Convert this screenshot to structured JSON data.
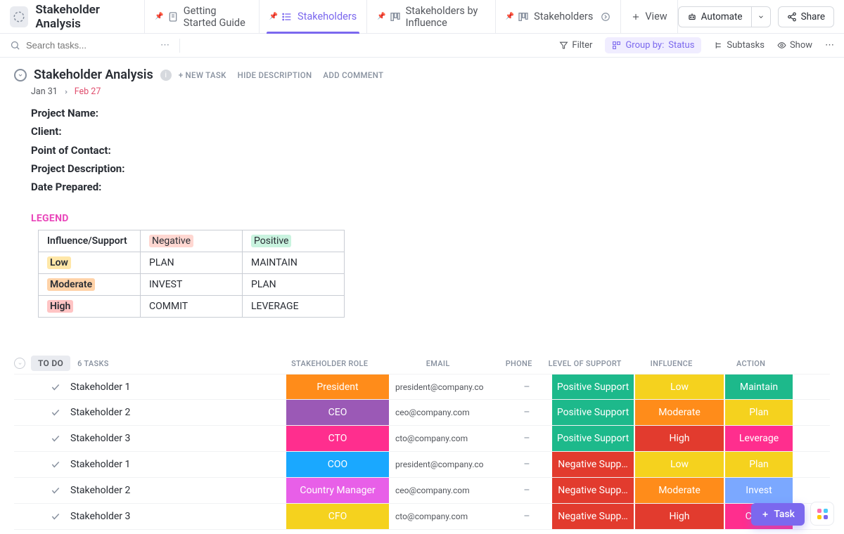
{
  "page": {
    "title": "Stakeholder Analysis"
  },
  "tabs": [
    {
      "label": "Getting Started Guide",
      "icon": "doc"
    },
    {
      "label": "Stakeholders",
      "icon": "list",
      "active": true
    },
    {
      "label": "Stakeholders by Influence",
      "icon": "board"
    },
    {
      "label": "Stakeholders",
      "icon": "board",
      "extra": true
    }
  ],
  "addView": "View",
  "automate": "Automate",
  "share": "Share",
  "search": {
    "placeholder": "Search tasks..."
  },
  "toolbar": {
    "filter": "Filter",
    "groupby_label": "Group by:",
    "groupby_value": "Status",
    "subtasks": "Subtasks",
    "show": "Show"
  },
  "section": {
    "title": "Stakeholder Analysis",
    "new_task": "+ NEW TASK",
    "hide_desc": "HIDE DESCRIPTION",
    "add_comment": "ADD COMMENT",
    "date_start": "Jan 31",
    "date_end": "Feb 27"
  },
  "description": {
    "l1": "Project Name:",
    "l2": "Client:",
    "l3": "Point of Contact:",
    "l4": "Project Description:",
    "l5": "Date Prepared:"
  },
  "legend": {
    "label": "LEGEND",
    "header": "Influence/Support",
    "negative": "Negative",
    "positive": "Positive",
    "low": "Low",
    "moderate": "Moderate",
    "high": "High",
    "plan": "PLAN",
    "maintain": "MAINTAIN",
    "invest": "INVEST",
    "commit": "COMMIT",
    "leverage": "LEVERAGE",
    "colors": {
      "negative": "#ffd7d1",
      "positive": "#c9f3df",
      "low": "#ffe7a8",
      "moderate": "#ffd2a8",
      "high": "#ffc4c4"
    }
  },
  "tasks": {
    "status_label": "TO DO",
    "count_label": "6 TASKS",
    "columns": {
      "role": "STAKEHOLDER ROLE",
      "email": "EMAIL",
      "phone": "PHONE",
      "support": "LEVEL OF SUPPORT",
      "influence": "INFLUENCE",
      "action": "ACTION"
    },
    "rows": [
      {
        "name": "Stakeholder 1",
        "role": "President",
        "role_bg": "#ff8c1a",
        "email": "president@company.co",
        "phone": "–",
        "support": "Positive Support",
        "support_bg": "#1db98b",
        "influence": "Low",
        "influence_bg": "#f5d21e",
        "action": "Maintain",
        "action_bg": "#1db98b"
      },
      {
        "name": "Stakeholder 2",
        "role": "CEO",
        "role_bg": "#9b59b6",
        "email": "ceo@company.com",
        "phone": "–",
        "support": "Positive Support",
        "support_bg": "#1db98b",
        "influence": "Moderate",
        "influence_bg": "#ff8c1a",
        "action": "Plan",
        "action_bg": "#f5d21e"
      },
      {
        "name": "Stakeholder 3",
        "role": "CTO",
        "role_bg": "#ff2e8e",
        "email": "cto@company.com",
        "phone": "–",
        "support": "Positive Support",
        "support_bg": "#1db98b",
        "influence": "High",
        "influence_bg": "#e23b2e",
        "action": "Leverage",
        "action_bg": "#ff2e8e"
      },
      {
        "name": "Stakeholder 1",
        "role": "COO",
        "role_bg": "#1aa8ff",
        "email": "president@company.co",
        "phone": "–",
        "support": "Negative Supp…",
        "support_bg": "#e23b2e",
        "influence": "Low",
        "influence_bg": "#f5d21e",
        "action": "Plan",
        "action_bg": "#f5d21e"
      },
      {
        "name": "Stakeholder 2",
        "role": "Country Manager",
        "role_bg": "#e85fe8",
        "email": "ceo@company.com",
        "phone": "–",
        "support": "Negative Supp…",
        "support_bg": "#e23b2e",
        "influence": "Moderate",
        "influence_bg": "#ff8c1a",
        "action": "Invest",
        "action_bg": "#7ba8ff"
      },
      {
        "name": "Stakeholder 3",
        "role": "CFO",
        "role_bg": "#f5d21e",
        "email": "cto@company.com",
        "phone": "–",
        "support": "Negative Supp…",
        "support_bg": "#e23b2e",
        "influence": "High",
        "influence_bg": "#e23b2e",
        "action": "Com…",
        "action_bg": "#ff2e8e"
      }
    ]
  },
  "fab": {
    "task": "Task"
  }
}
